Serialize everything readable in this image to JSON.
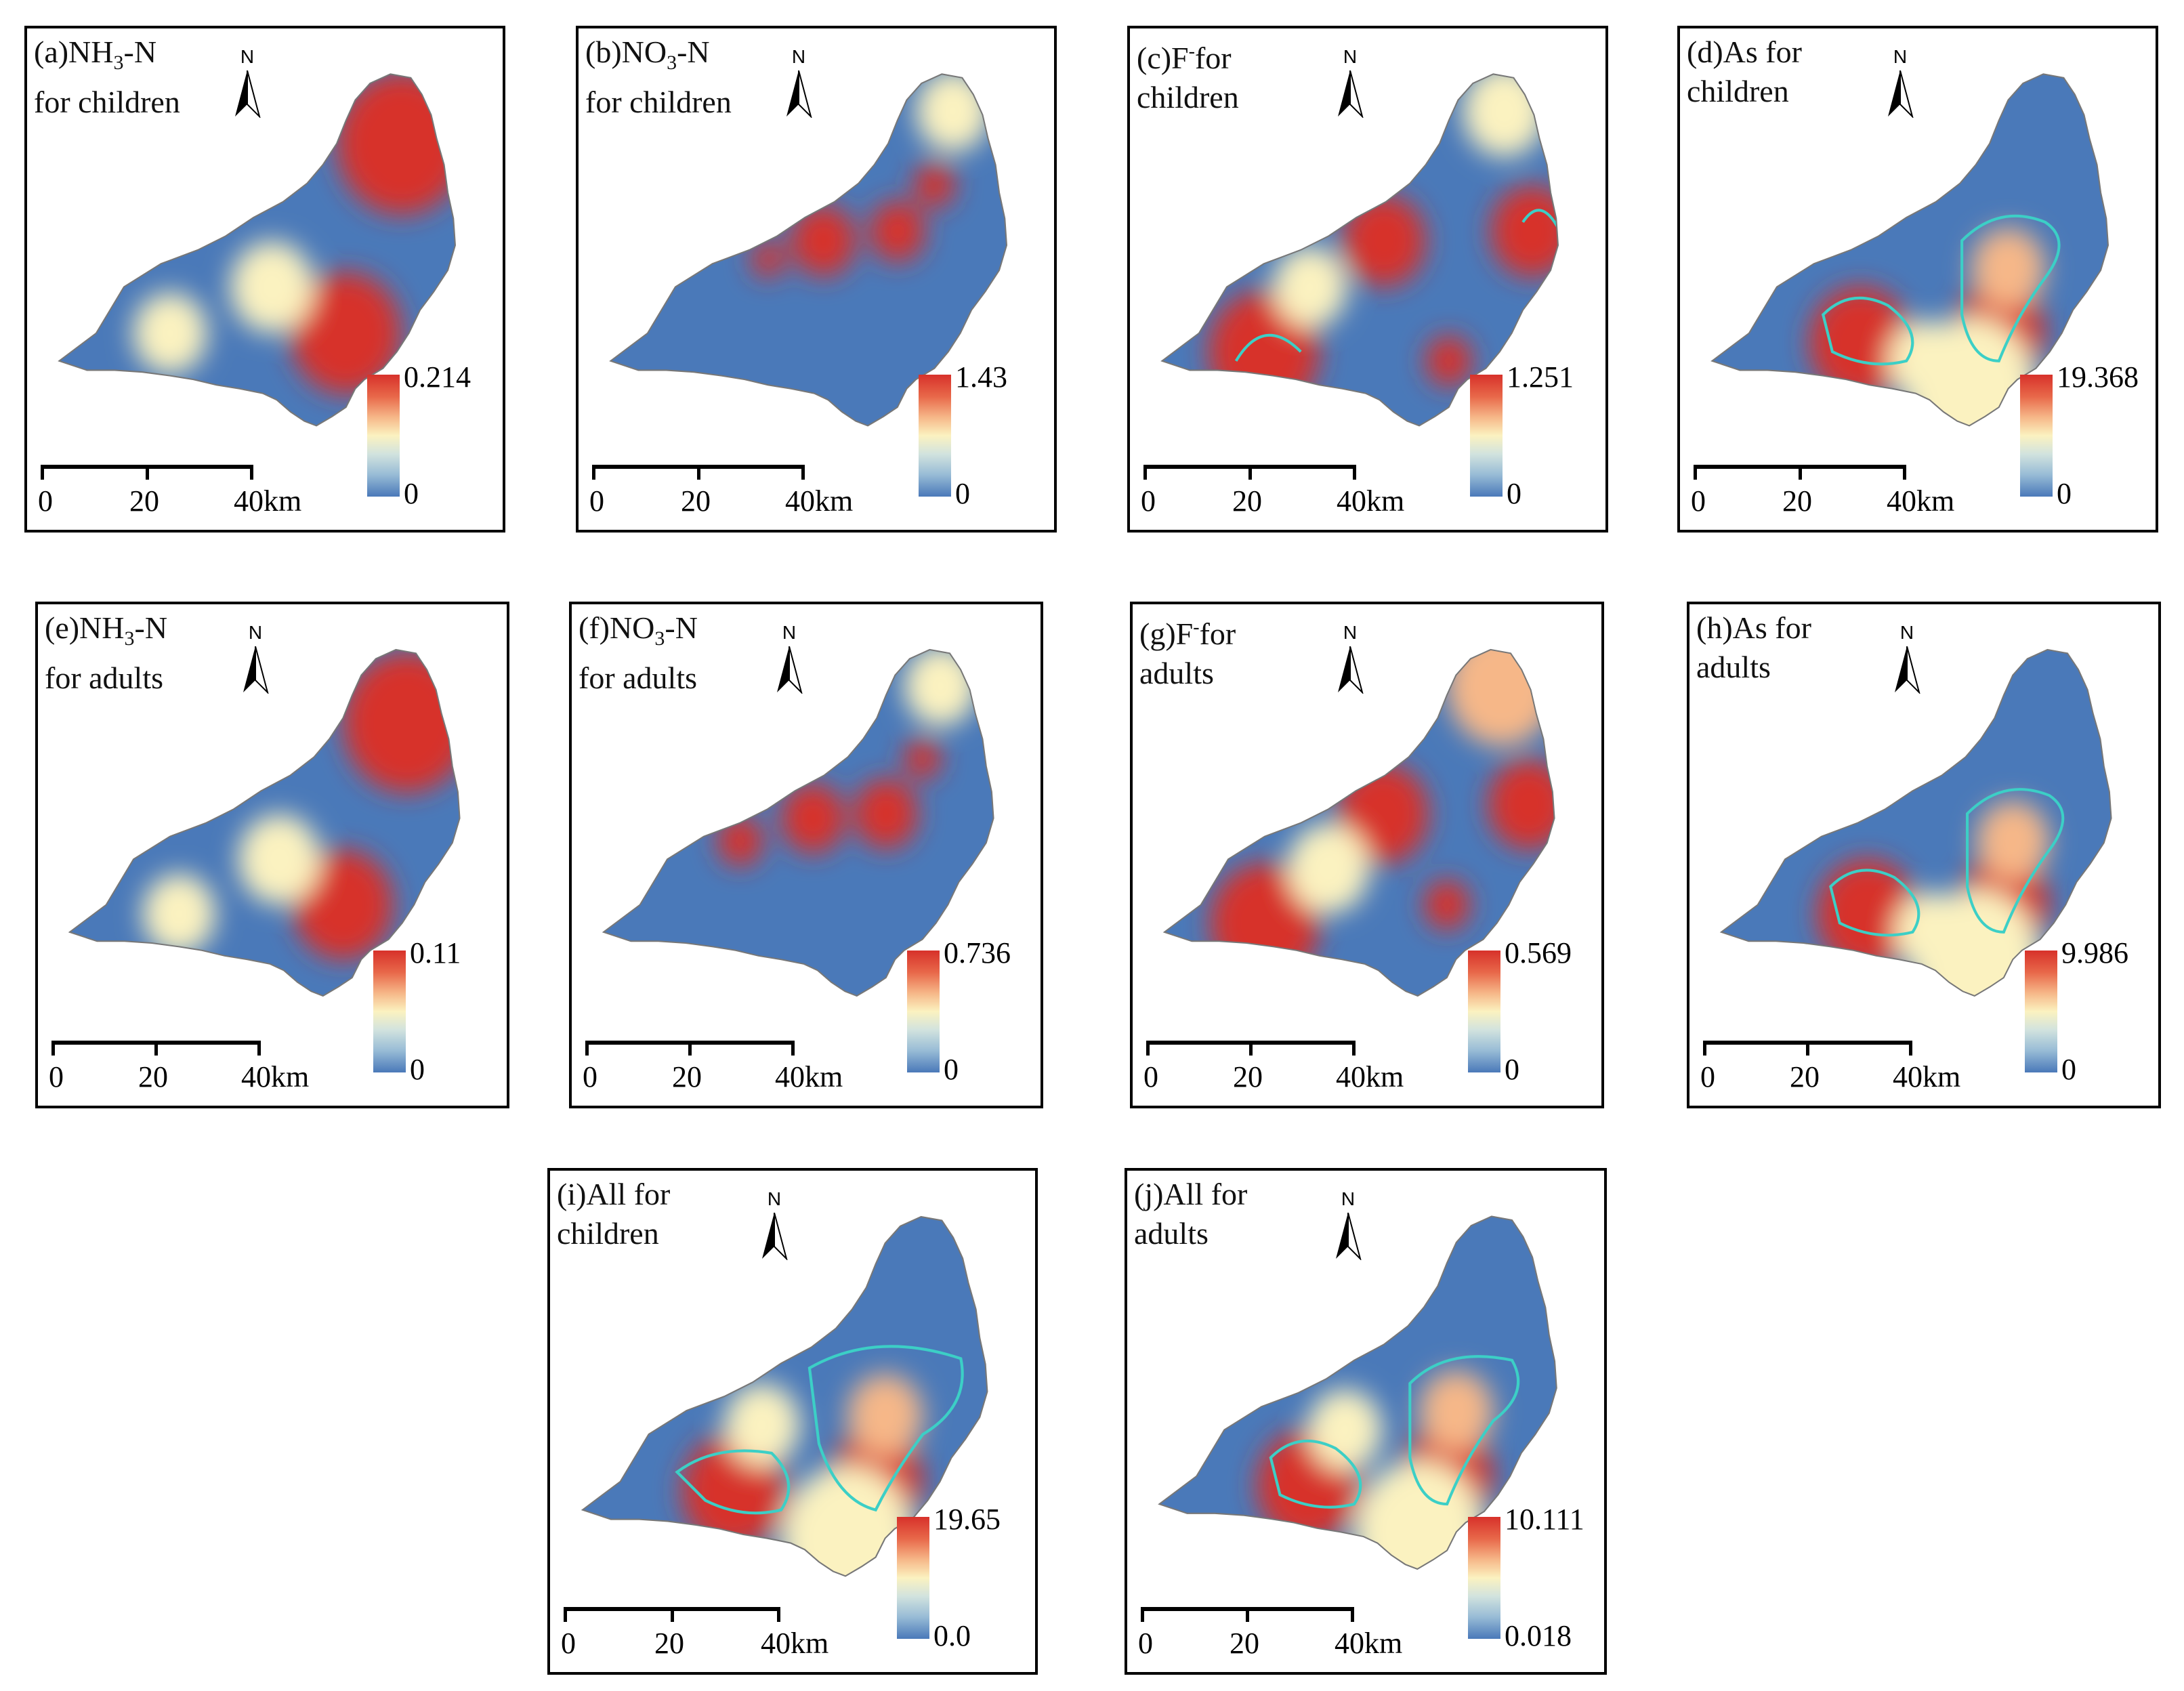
{
  "figure": {
    "north_label": "N",
    "scale_labels": [
      "0",
      "20",
      "40km"
    ],
    "palette": {
      "high": "#d7312a",
      "mid_high": "#f6b788",
      "mid": "#fbf2c0",
      "mid_low": "#98bcd6",
      "low": "#4a79b9",
      "contour": "#3ccfc6"
    }
  },
  "panels": [
    {
      "id": "a",
      "title_prefix": "(a)NH",
      "title_sub": "3",
      "title_suffix": "-N",
      "title_line2": "for children",
      "legend_max": "0.214",
      "legend_min": "0"
    },
    {
      "id": "b",
      "title_prefix": "(b)NO",
      "title_sub": "3",
      "title_suffix": "-N",
      "title_line2": "for children",
      "legend_max": "1.43",
      "legend_min": "0"
    },
    {
      "id": "c",
      "title_prefix": "(c)F",
      "title_sup": "-",
      "title_suffix": "for",
      "title_line2": "children",
      "legend_max": "1.251",
      "legend_min": "0"
    },
    {
      "id": "d",
      "title_prefix": "(d)As for",
      "title_line2": "children",
      "legend_max": "19.368",
      "legend_min": "0"
    },
    {
      "id": "e",
      "title_prefix": "(e)NH",
      "title_sub": "3",
      "title_suffix": "-N",
      "title_line2": "for adults",
      "legend_max": "0.11",
      "legend_min": "0"
    },
    {
      "id": "f",
      "title_prefix": "(f)NO",
      "title_sub": "3",
      "title_suffix": "-N",
      "title_line2": "for adults",
      "legend_max": "0.736",
      "legend_min": "0"
    },
    {
      "id": "g",
      "title_prefix": "(g)F",
      "title_sup": "-",
      "title_suffix": "for",
      "title_line2": "adults",
      "legend_max": "0.569",
      "legend_min": "0"
    },
    {
      "id": "h",
      "title_prefix": "(h)As for",
      "title_line2": "adults",
      "legend_max": "9.986",
      "legend_min": "0"
    },
    {
      "id": "i",
      "title_prefix": "(i)All for",
      "title_line2": "children",
      "legend_max": "19.65",
      "legend_min": "0.0"
    },
    {
      "id": "j",
      "title_prefix": "(j)All for",
      "title_line2": "adults",
      "legend_max": "10.111",
      "legend_min": "0.018"
    }
  ]
}
